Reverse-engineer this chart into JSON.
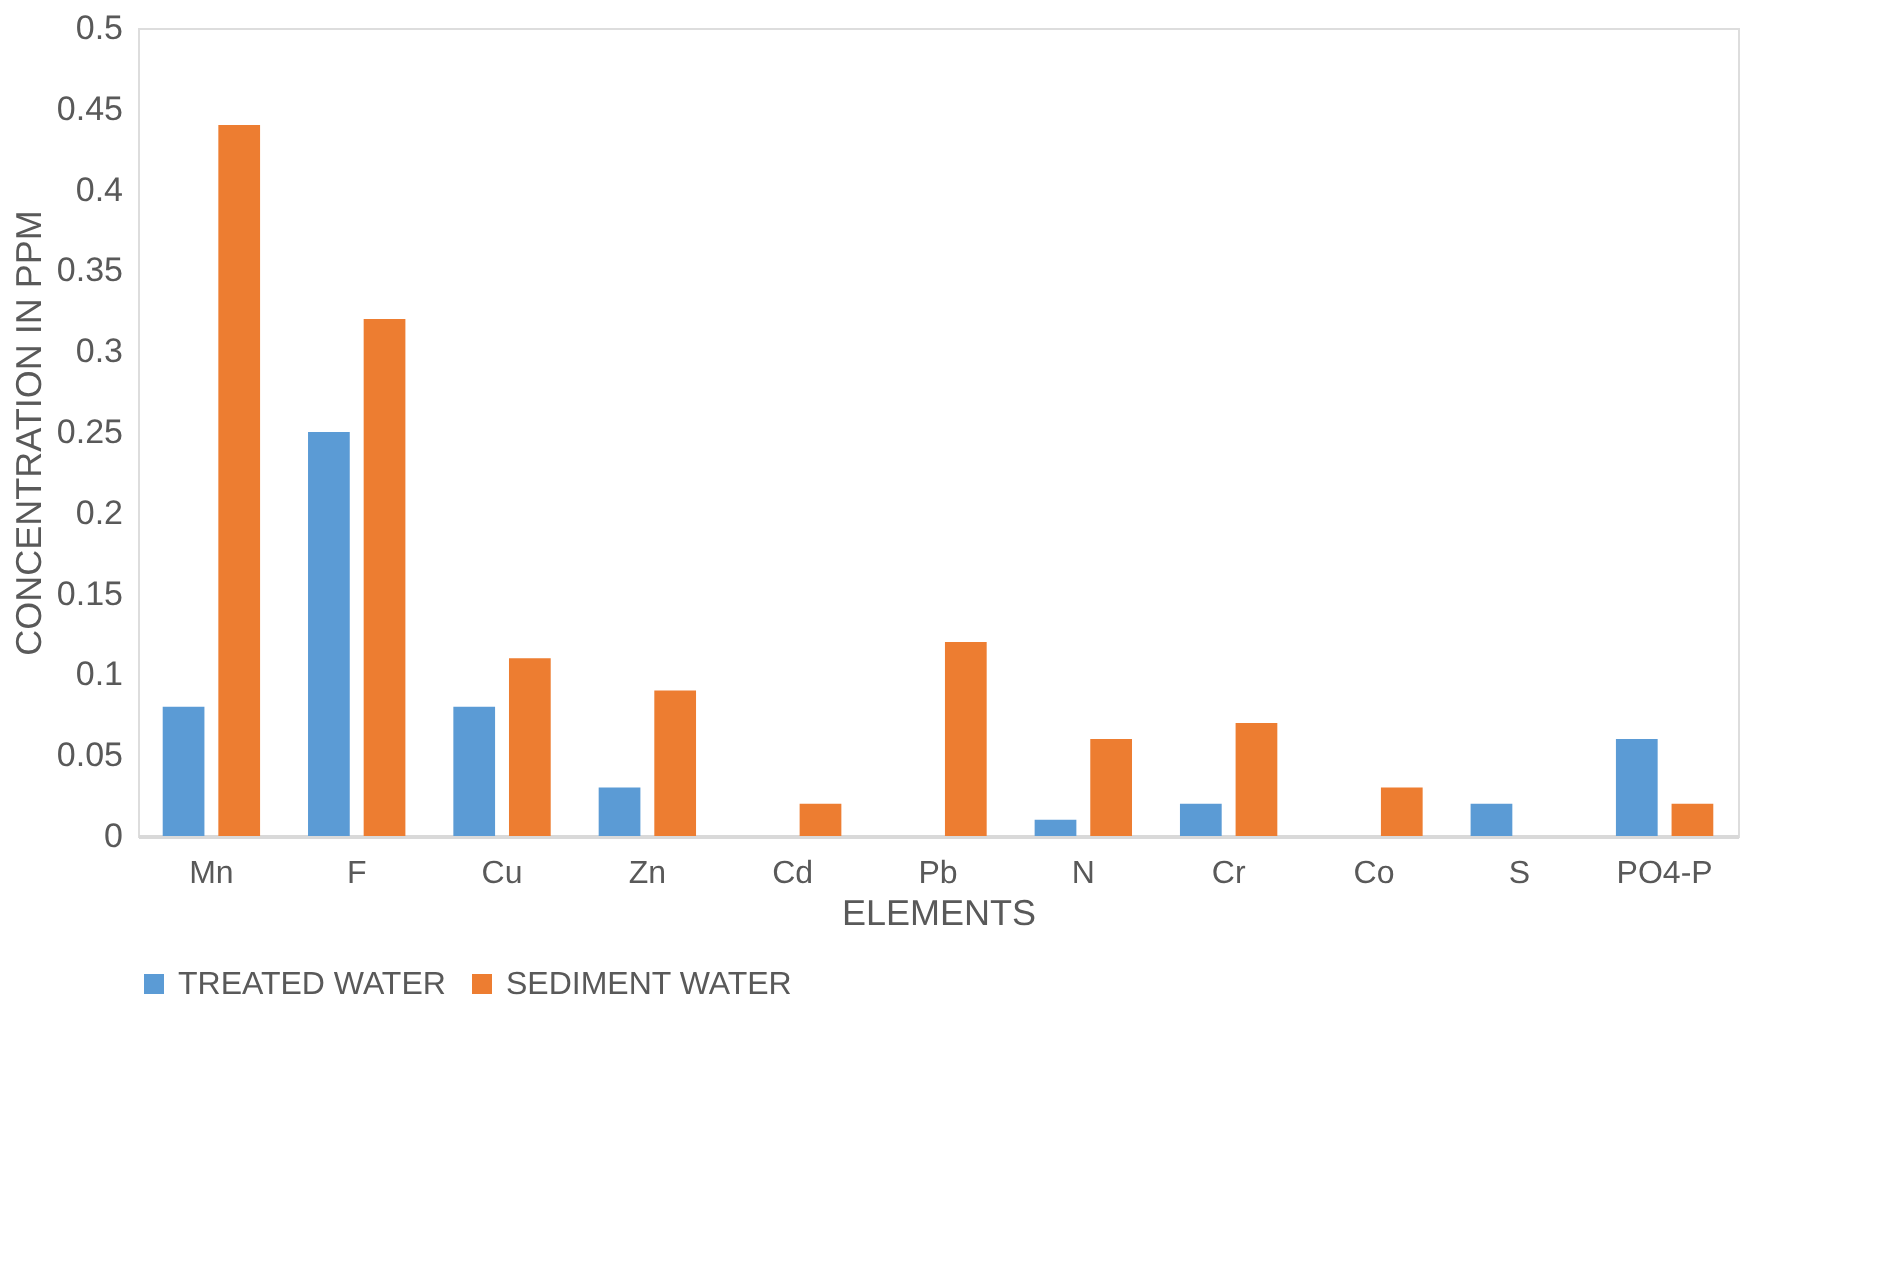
{
  "chart_data": {
    "type": "bar",
    "xlabel": "ELEMENTS",
    "ylabel": "CONCENTRATION IN PPM",
    "categories": [
      "Mn",
      "F",
      "Cu",
      "Zn",
      "Cd",
      "Pb",
      "N",
      "Cr",
      "Co",
      "S",
      "PO4-P"
    ],
    "series": [
      {
        "name": "TREATED WATER",
        "color": "#5b9bd5",
        "values": [
          0.08,
          0.25,
          0.08,
          0.03,
          0,
          0,
          0.01,
          0.02,
          0,
          0.02,
          0.06
        ]
      },
      {
        "name": "SEDIMENT WATER",
        "color": "#ed7d31",
        "values": [
          0.44,
          0.32,
          0.11,
          0.09,
          0.02,
          0.12,
          0.06,
          0.07,
          0.03,
          0,
          0.02
        ]
      }
    ],
    "ylim": [
      0,
      0.5
    ],
    "yticks": [
      0,
      0.05,
      0.1,
      0.15,
      0.2,
      0.25,
      0.3,
      0.35,
      0.4,
      0.45,
      0.5
    ],
    "grid": false,
    "legend": "bottom"
  }
}
